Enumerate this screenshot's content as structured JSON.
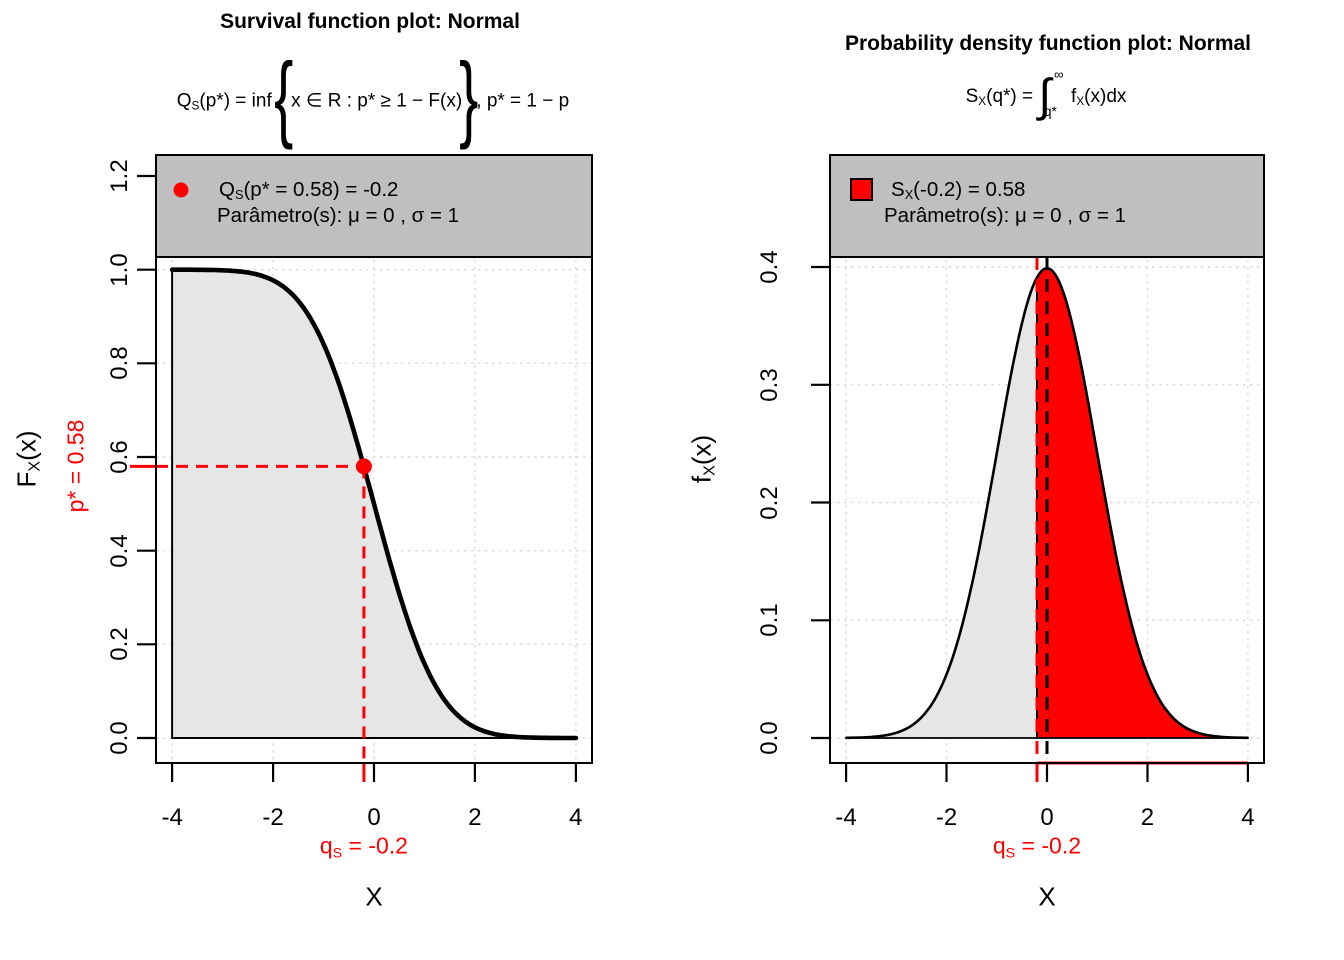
{
  "colors": {
    "red": "#ff0000",
    "legend_bg": "#bfbfbf",
    "fill_gray": "#e6e6e6",
    "grid": "#d9d9d9",
    "line": "#000000",
    "background": "#ffffff"
  },
  "left": {
    "title": "Survival function plot: Normal",
    "formula": [
      {
        "text": "Q"
      },
      {
        "sub": "S"
      },
      {
        "text": "(p*) = inf "
      },
      {
        "brace": "{"
      },
      {
        "text": "x ∈ R : p* ≥ 1 − F(x)"
      },
      {
        "brace": "}"
      },
      {
        "text": ", p* = 1 − p"
      }
    ],
    "legend_line1": [
      {
        "text": "Q"
      },
      {
        "sub": "S"
      },
      {
        "text": "(p* = 0.58) = -0.2"
      }
    ],
    "legend_line2": "Parâmetro(s): μ = 0 , σ = 1",
    "ylabel": [
      {
        "text": "F"
      },
      {
        "sub": "X"
      },
      {
        "text": "(x)"
      }
    ],
    "xlabel": "X",
    "x_annotation": [
      {
        "text": "q"
      },
      {
        "sub": "S"
      },
      {
        "text": " = -0.2"
      }
    ],
    "y_annotation": "p* = 0.58"
  },
  "right": {
    "title": "Probability density function plot: Normal",
    "formula": [
      {
        "text": "S"
      },
      {
        "sub": "X"
      },
      {
        "text": "(q*) = "
      },
      {
        "integral": {
          "upper": "∞",
          "lower": "q*"
        }
      },
      {
        "text": "f"
      },
      {
        "sub": "X"
      },
      {
        "text": "(x)dx"
      }
    ],
    "legend_line1": [
      {
        "text": "S"
      },
      {
        "sub": "X"
      },
      {
        "text": "(-0.2) = 0.58"
      }
    ],
    "legend_line2": "Parâmetro(s): μ = 0 , σ = 1",
    "ylabel": [
      {
        "text": "f"
      },
      {
        "sub": "X"
      },
      {
        "text": "(x)"
      }
    ],
    "xlabel": "X",
    "x_annotation": [
      {
        "text": "q"
      },
      {
        "sub": "S"
      },
      {
        "text": " = -0.2"
      }
    ]
  },
  "chart_data": [
    {
      "type": "line",
      "title": "Survival function plot: Normal",
      "subtitle_formula": "Q_S(p*) = inf{x ∈ R : p* ≥ 1 − F(x)}, p* = 1 − p",
      "xlabel": "X",
      "ylabel": "F_X(x)",
      "distribution": "Normal",
      "parameters": {
        "mu": 0,
        "sigma": 1
      },
      "curve": "survival S(x) = 1 − F(x)",
      "x_range": [
        -4,
        4
      ],
      "xlim": [
        -4.32,
        4.32
      ],
      "ylim": [
        -0.053,
        1.245
      ],
      "xticks": [
        -4,
        -2,
        0,
        2,
        4
      ],
      "yticks": [
        0,
        0.2,
        0.4,
        0.6,
        0.8,
        1.0,
        1.2
      ],
      "xtick_labels": [
        "-4",
        "-2",
        "0",
        "2",
        "4"
      ],
      "ytick_labels": [
        "0.0",
        "0.2",
        "0.4",
        "0.6",
        "0.8",
        "1.0",
        "1.2"
      ],
      "marked_point": {
        "x": -0.2,
        "y": 0.58
      },
      "annotations": {
        "x": "q_S = -0.2",
        "y": "p* = 0.58"
      },
      "legend": [
        "Q_S(p* = 0.58) = -0.2",
        "Parâmetro(s): μ = 0 , σ = 1"
      ],
      "legend_position": "top",
      "grid": true,
      "fill_under_curve": "#e6e6e6",
      "line_color": "#000000",
      "accent_color": "#ff0000"
    },
    {
      "type": "area",
      "title": "Probability density function plot: Normal",
      "subtitle_formula": "S_X(q*) = ∫_{q*}^{∞} f_X(x)dx",
      "xlabel": "X",
      "ylabel": "f_X(x)",
      "distribution": "Normal",
      "parameters": {
        "mu": 0,
        "sigma": 1
      },
      "curve": "pdf f(x)",
      "x_range": [
        -4,
        4
      ],
      "xlim": [
        -4.32,
        4.32
      ],
      "ylim": [
        -0.021,
        0.495
      ],
      "xticks": [
        -4,
        -2,
        0,
        2,
        4
      ],
      "yticks": [
        0,
        0.1,
        0.2,
        0.3,
        0.4
      ],
      "xtick_labels": [
        "-4",
        "-2",
        "0",
        "2",
        "4"
      ],
      "ytick_labels": [
        "0.0",
        "0.1",
        "0.2",
        "0.3",
        "0.4"
      ],
      "split_x": -0.2,
      "area_right_of_split": 0.58,
      "peak": {
        "x": 0,
        "y": 0.3989
      },
      "vlines": [
        {
          "x": -0.2,
          "style": "dashed",
          "color": "#ff0000"
        },
        {
          "x": 0,
          "style": "dashed",
          "color": "#000000"
        }
      ],
      "red_axis_segment": [
        -0.2,
        4
      ],
      "annotations": {
        "x": "q_S = -0.2"
      },
      "legend": [
        "S_X(-0.2) = 0.58",
        "Parâmetro(s): μ = 0 , σ = 1"
      ],
      "legend_position": "top",
      "grid": true,
      "left_fill": "#e6e6e6",
      "right_fill": "#ff0000",
      "line_color": "#000000",
      "accent_color": "#ff0000"
    }
  ]
}
